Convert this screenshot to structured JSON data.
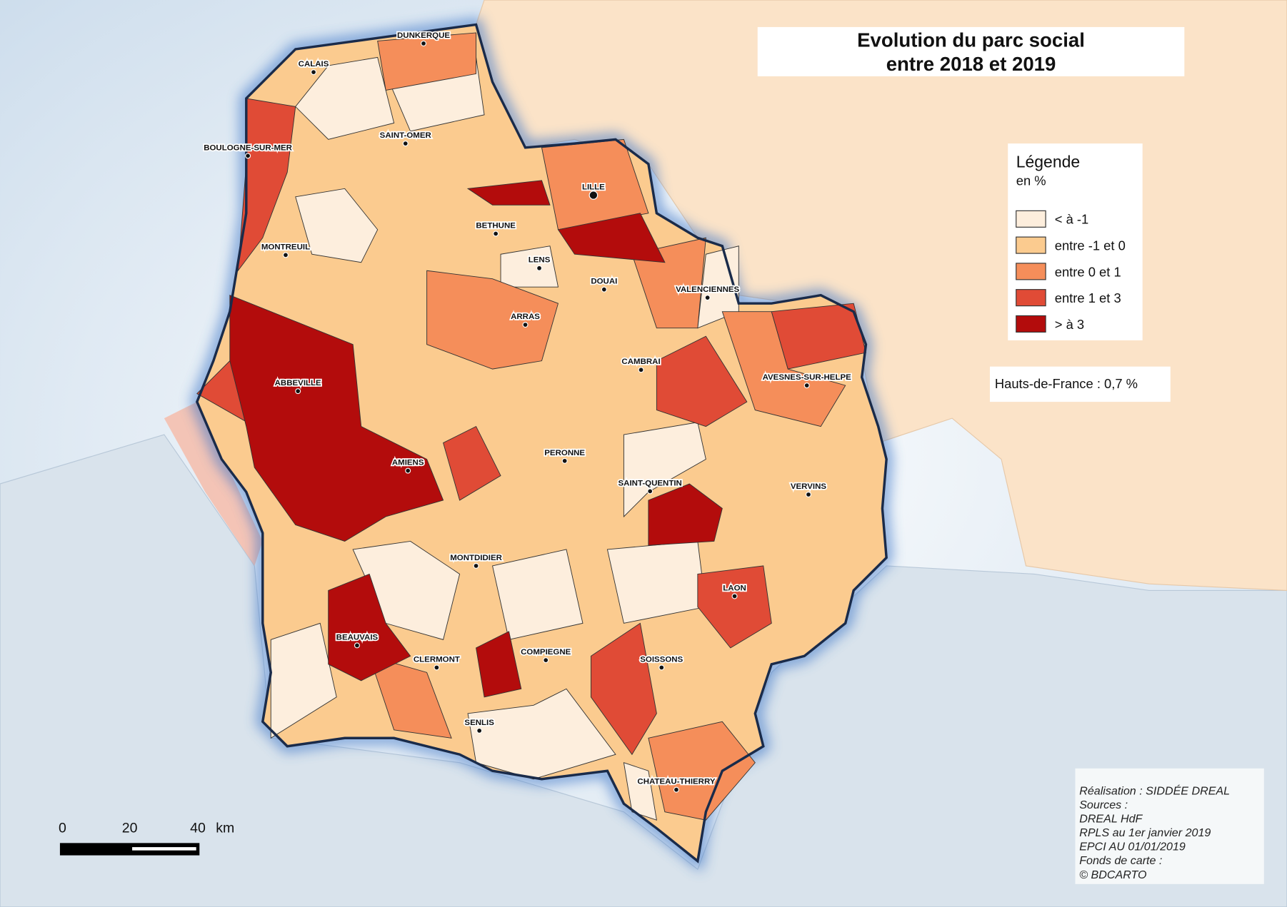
{
  "title": [
    "Evolution du parc social",
    "entre 2018 et 2019"
  ],
  "legend": {
    "title": "Légende",
    "unit": "en %",
    "items": [
      {
        "label": "< à -1",
        "color": "#fdeedd"
      },
      {
        "label": "entre -1 et 0",
        "color": "#fbcb8f"
      },
      {
        "label": "entre 0 et 1",
        "color": "#f58e5a"
      },
      {
        "label": "entre 1 et 3",
        "color": "#e04b36"
      },
      {
        "label": "> à 3",
        "color": "#b30c0c"
      }
    ]
  },
  "region_total": "Hauts-de-France : 0,7 %",
  "cities": [
    "DUNKERQUE",
    "CALAIS",
    "SAINT-OMER",
    "BOULOGNE-SUR-MER",
    "LILLE",
    "BETHUNE",
    "LENS",
    "DOUAI",
    "VALENCIENNES",
    "MONTREUIL",
    "ARRAS",
    "CAMBRAI",
    "ABBEVILLE",
    "AVESNES-SUR-HELPE",
    "AMIENS",
    "PERONNE",
    "SAINT-QUENTIN",
    "VERVINS",
    "MONTDIDIER",
    "LAON",
    "BEAUVAIS",
    "CLERMONT",
    "COMPIEGNE",
    "SOISSONS",
    "SENLIS",
    "CHATEAU-THIERRY"
  ],
  "scale_bar": {
    "ticks": [
      "0",
      "20",
      "40"
    ],
    "unit": "km"
  },
  "credits": [
    "Réalisation : SIDDÉE DREAL",
    "Sources :",
    "DREAL HdF",
    "RPLS au 1er janvier 2019",
    "EPCI AU 01/01/2019",
    "Fonds de carte :",
    "© BDCARTO"
  ]
}
